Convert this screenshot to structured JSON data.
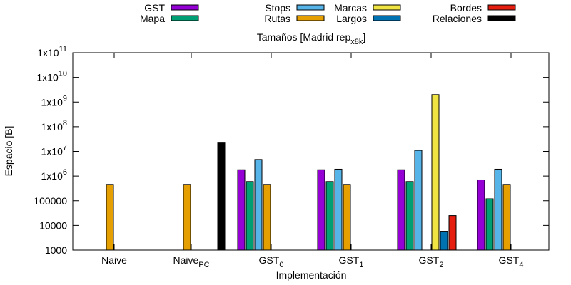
{
  "chart_data": {
    "type": "bar",
    "title": "Tamaños [Madrid rep",
    "title_sub": "x8k",
    "title_end": "]",
    "xlabel": "Implementación",
    "ylabel": "Espacio [B]",
    "y_scale": "log",
    "ylim": [
      1000,
      100000000000
    ],
    "grid": false,
    "legend_position": "top",
    "y_ticks": [
      {
        "value": 1000,
        "label": "1000",
        "base": "1000",
        "exp": ""
      },
      {
        "value": 10000,
        "label": "10000",
        "base": "10000",
        "exp": ""
      },
      {
        "value": 100000,
        "label": "100000",
        "base": "100000",
        "exp": ""
      },
      {
        "value": 1000000,
        "label": "1x10^6",
        "base": "1x10",
        "exp": "6"
      },
      {
        "value": 10000000,
        "label": "1x10^7",
        "base": "1x10",
        "exp": "7"
      },
      {
        "value": 100000000,
        "label": "1x10^8",
        "base": "1x10",
        "exp": "8"
      },
      {
        "value": 1000000000,
        "label": "1x10^9",
        "base": "1x10",
        "exp": "9"
      },
      {
        "value": 10000000000,
        "label": "1x10^10",
        "base": "1x10",
        "exp": "10"
      },
      {
        "value": 100000000000,
        "label": "1x10^11",
        "base": "1x10",
        "exp": "11"
      }
    ],
    "categories": [
      {
        "name": "Naive",
        "base": "Naive",
        "sub": ""
      },
      {
        "name": "Naive_PC",
        "base": "Naive",
        "sub": "PC"
      },
      {
        "name": "GST_0",
        "base": "GST",
        "sub": "0"
      },
      {
        "name": "GST_1",
        "base": "GST",
        "sub": "1"
      },
      {
        "name": "GST_2",
        "base": "GST",
        "sub": "2"
      },
      {
        "name": "GST_4",
        "base": "GST",
        "sub": "4"
      }
    ],
    "series": [
      {
        "name": "GST",
        "color": "#9400d3",
        "values": [
          null,
          null,
          1800000,
          1800000,
          1800000,
          700000
        ]
      },
      {
        "name": "Mapa",
        "color": "#009e73",
        "values": [
          null,
          null,
          600000,
          600000,
          600000,
          120000
        ]
      },
      {
        "name": "Stops",
        "color": "#56b4e9",
        "values": [
          null,
          null,
          4700000,
          1900000,
          11000000,
          1900000
        ]
      },
      {
        "name": "Rutas",
        "color": "#e69f00",
        "values": [
          460000,
          460000,
          460000,
          460000,
          null,
          460000
        ]
      },
      {
        "name": "Marcas",
        "color": "#f0e442",
        "values": [
          null,
          null,
          null,
          null,
          2000000000,
          null
        ]
      },
      {
        "name": "Largos",
        "color": "#0072b2",
        "values": [
          null,
          null,
          null,
          null,
          5800,
          null
        ]
      },
      {
        "name": "Bordes",
        "color": "#e51e10",
        "values": [
          null,
          null,
          null,
          null,
          25000,
          null
        ]
      },
      {
        "name": "Relaciones",
        "color": "#000000",
        "values": [
          null,
          22000000,
          null,
          null,
          null,
          null
        ]
      }
    ]
  }
}
